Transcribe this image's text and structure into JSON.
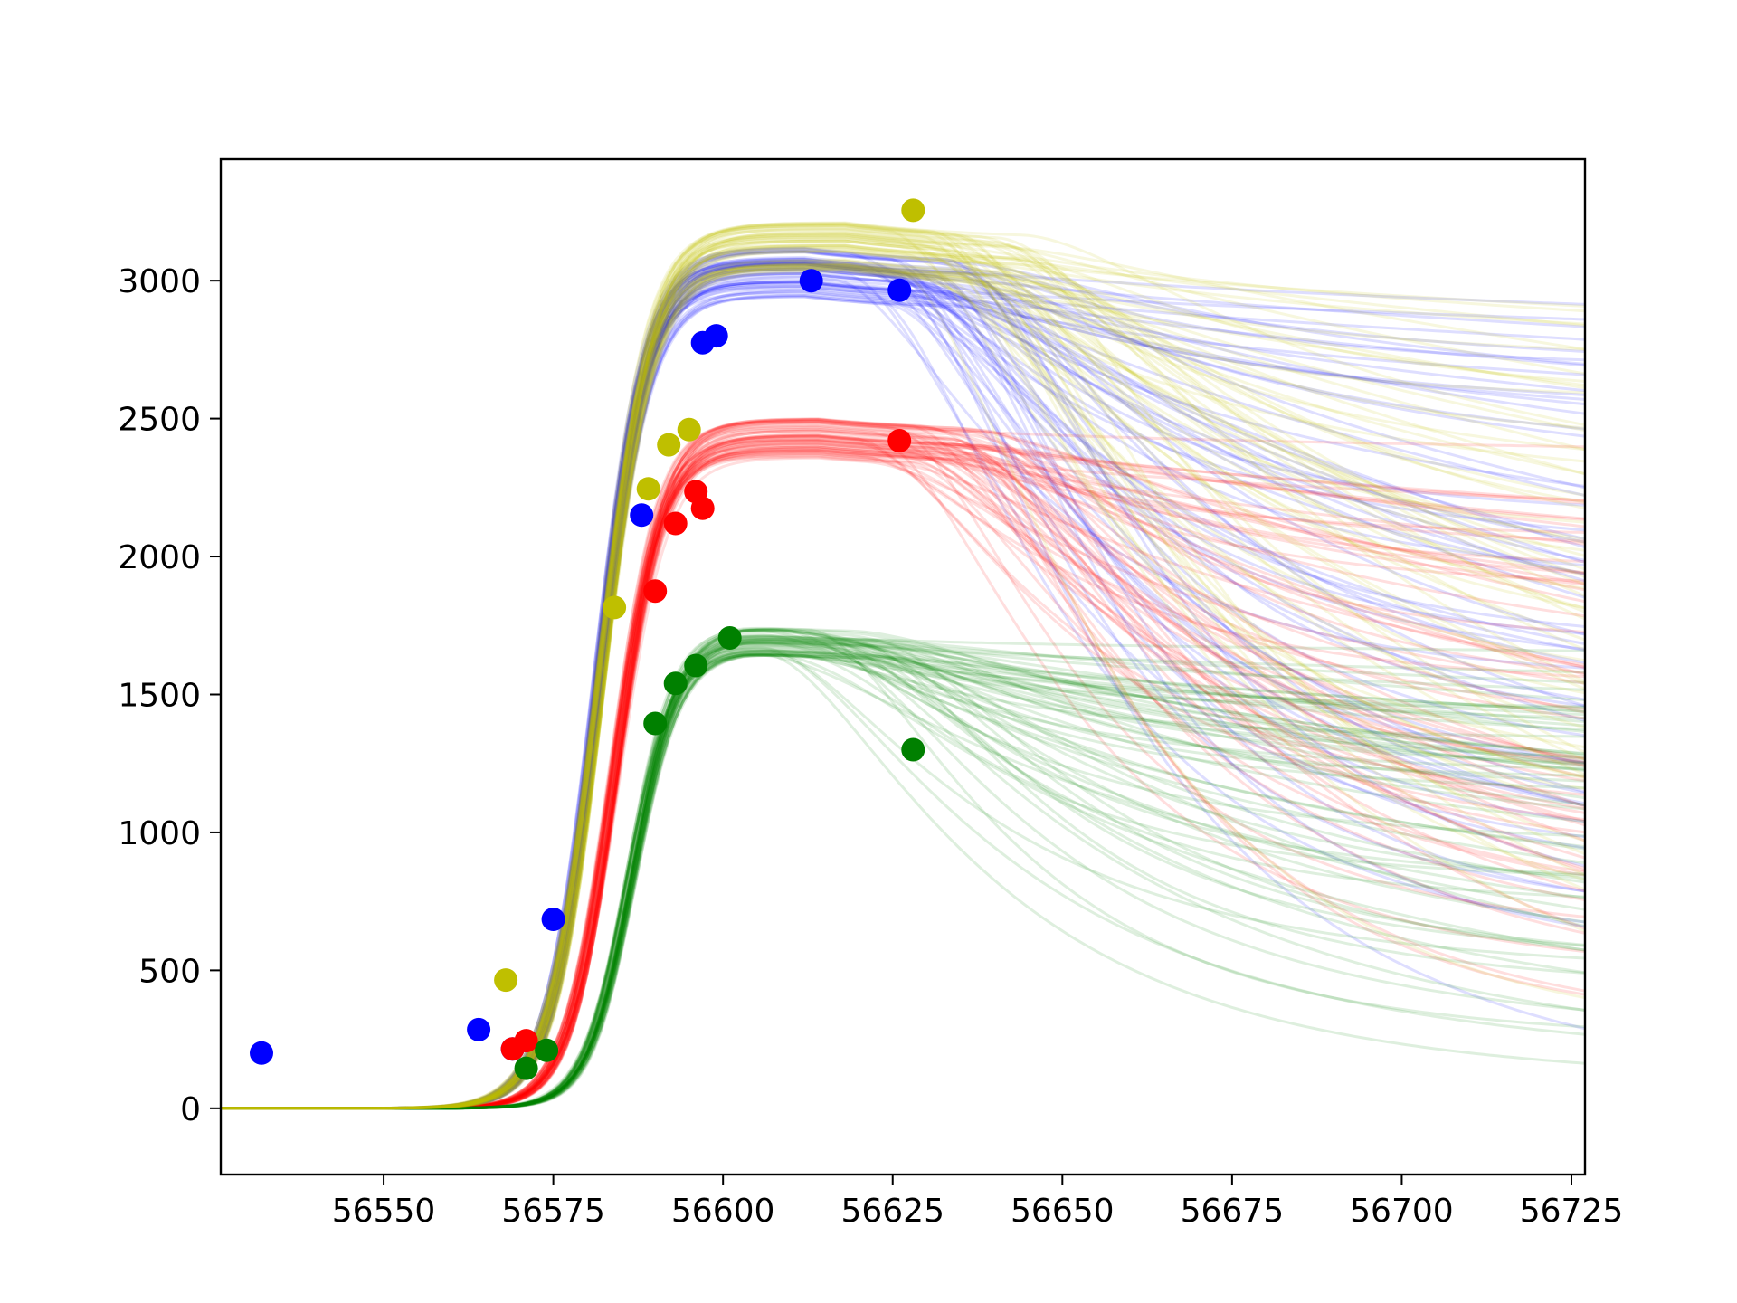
{
  "chart_data": {
    "type": "scatter",
    "title": "",
    "xlabel": "",
    "ylabel": "",
    "xlim": [
      56526,
      56727
    ],
    "ylim": [
      -240,
      3440
    ],
    "xticks": [
      56550,
      56575,
      56600,
      56625,
      56650,
      56675,
      56700,
      56725
    ],
    "yticks": [
      0,
      500,
      1000,
      1500,
      2000,
      2500,
      3000
    ],
    "grid": false,
    "legend": "none",
    "series": [
      {
        "color": "#0000ff",
        "points": [
          [
            56532,
            200
          ],
          [
            56564,
            285
          ],
          [
            56569,
            215
          ],
          [
            56575,
            685
          ],
          [
            56588,
            2150
          ],
          [
            56597,
            2775
          ],
          [
            56599,
            2800
          ],
          [
            56613,
            3000
          ],
          [
            56626,
            2965
          ]
        ],
        "model": {
          "x0": 56581.5,
          "k": 0.28,
          "A": 3030,
          "peak_x": 56612,
          "spread_start": 56622
        }
      },
      {
        "color": "#ff0000",
        "points": [
          [
            56569,
            215
          ],
          [
            56571,
            245
          ],
          [
            56590,
            1875
          ],
          [
            56593,
            2120
          ],
          [
            56596,
            2235
          ],
          [
            56597,
            2175
          ],
          [
            56626,
            2420
          ]
        ],
        "model": {
          "x0": 56584,
          "k": 0.29,
          "A": 2430,
          "peak_x": 56614,
          "spread_start": 56625
        }
      },
      {
        "color": "#008000",
        "points": [
          [
            56571,
            145
          ],
          [
            56574,
            210
          ],
          [
            56590,
            1395
          ],
          [
            56593,
            1540
          ],
          [
            56596,
            1605
          ],
          [
            56601,
            1705
          ],
          [
            56628,
            1300
          ]
        ],
        "model": {
          "x0": 56586.5,
          "k": 0.3,
          "A": 1700,
          "peak_x": 56603,
          "spread_start": 56610
        }
      },
      {
        "color": "#bfbf00",
        "points": [
          [
            56568,
            465
          ],
          [
            56584,
            1815
          ],
          [
            56589,
            2245
          ],
          [
            56592,
            2405
          ],
          [
            56595,
            2460
          ],
          [
            56628,
            3255
          ]
        ],
        "model": {
          "x0": 56582,
          "k": 0.27,
          "A": 3120,
          "peak_x": 56618,
          "spread_start": 56630
        }
      }
    ]
  }
}
